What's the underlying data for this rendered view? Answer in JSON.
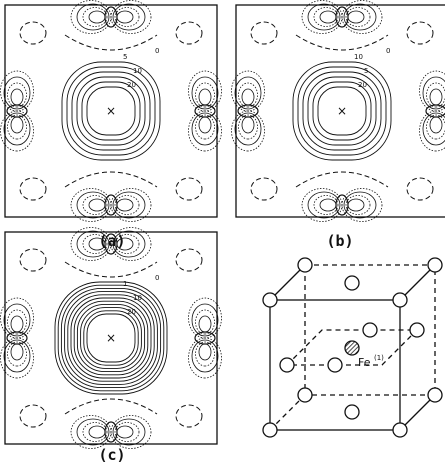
{
  "panels": [
    {
      "label": "(a)",
      "contour_labels": [
        "0",
        "5",
        "10",
        "20"
      ]
    },
    {
      "label": "(b)",
      "contour_labels": [
        "0",
        "10",
        "5",
        "20"
      ]
    },
    {
      "label": "(c)",
      "contour_labels": [
        "0",
        "1",
        "10",
        "20"
      ]
    }
  ],
  "structure": {
    "atom_label": "Fe",
    "atom_site": "(1)"
  }
}
